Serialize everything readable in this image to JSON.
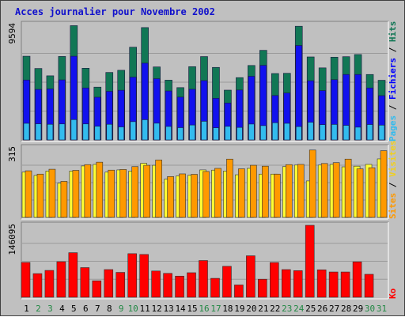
{
  "chart_data": {
    "type": "bar",
    "title": "Acces journalier pour Novembre 2002",
    "categories": [
      "1",
      "2",
      "3",
      "4",
      "5",
      "6",
      "7",
      "8",
      "9",
      "10",
      "11",
      "12",
      "13",
      "14",
      "15",
      "16",
      "17",
      "18",
      "19",
      "20",
      "21",
      "22",
      "23",
      "24",
      "25",
      "26",
      "27",
      "28",
      "29",
      "30",
      "31"
    ],
    "weekend_days": [
      "2",
      "3",
      "9",
      "10",
      "16",
      "17",
      "23",
      "24",
      "30",
      "31"
    ],
    "panels": [
      {
        "name": "pages-fichiers-hits",
        "max_label": "9594",
        "max": 9594,
        "right_label_parts": [
          {
            "text": "Pages",
            "color": "#33bbee"
          },
          {
            "text": " / ",
            "color": "#000000"
          },
          {
            "text": "Fichiers",
            "color": "#0000ff"
          },
          {
            "text": " / ",
            "color": "#000000"
          },
          {
            "text": "Hits",
            "color": "#117755"
          }
        ],
        "series": [
          {
            "name": "Hits",
            "color": "#117755",
            "values": [
              6960,
              5940,
              5330,
              6940,
              9500,
              5960,
              4390,
              5610,
              5790,
              7710,
              9340,
              6070,
              4970,
              4350,
              6090,
              6930,
              6030,
              4140,
              5180,
              6190,
              7450,
              5520,
              5540,
              9450,
              6900,
              5990,
              6880,
              6920,
              7100,
              5440,
              4960
            ]
          },
          {
            "name": "Fichiers",
            "color": "#1111ee",
            "values": [
              4980,
              4200,
              4240,
              4990,
              6960,
              4320,
              3550,
              4040,
              4130,
              5220,
              6380,
              5090,
              4070,
              3560,
              4210,
              4930,
              3460,
              3070,
              4150,
              5290,
              6200,
              3690,
              3900,
              7850,
              4920,
              4100,
              5010,
              5440,
              5440,
              4320,
              3680
            ]
          },
          {
            "name": "Pages",
            "color": "#33bbee",
            "values": [
              1380,
              1340,
              1300,
              1330,
              1690,
              1330,
              1140,
              1300,
              1080,
              1520,
              1680,
              1390,
              1120,
              1020,
              1240,
              1550,
              1010,
              1130,
              1040,
              1320,
              1190,
              1430,
              1380,
              1110,
              1470,
              1270,
              1290,
              1210,
              1060,
              1280,
              1230
            ]
          }
        ]
      },
      {
        "name": "visites-sites",
        "max_label": "315",
        "max": 315,
        "right_label_parts": [
          {
            "text": "Sites",
            "color": "#ff9900"
          },
          {
            "text": " / ",
            "color": "#000000"
          },
          {
            "text": "Visites",
            "color": "#f0d020"
          }
        ],
        "series": [
          {
            "name": "Visites",
            "color": "#ffff33",
            "values": [
              205,
              190,
              210,
              155,
              210,
              233,
              240,
              205,
              215,
              210,
              245,
              236,
              173,
              188,
              191,
              215,
              214,
              210,
              193,
              222,
              196,
              196,
              230,
              237,
              165,
              237,
              240,
              229,
              232,
              240,
              265
            ]
          },
          {
            "name": "Sites",
            "color": "#ff9900",
            "values": [
              211,
              196,
              218,
              163,
              213,
              239,
              250,
              214,
              217,
              230,
              236,
              260,
              185,
              197,
              195,
              208,
              222,
              264,
              220,
              236,
              232,
              196,
              239,
              240,
              305,
              244,
              248,
              264,
              220,
              225,
              302
            ]
          }
        ]
      },
      {
        "name": "ko",
        "max_label": "146095",
        "max": 146095,
        "right_label_parts": [
          {
            "text": "Ko",
            "color": "#ff0000"
          }
        ],
        "series": [
          {
            "name": "Ko",
            "color": "#ff0000",
            "values": [
              70700,
              48000,
              54500,
              72200,
              90500,
              60200,
              33400,
              56200,
              50500,
              88500,
              86900,
              53300,
              48500,
              42900,
              49800,
              74600,
              38400,
              62800,
              25000,
              84200,
              36600,
              70500,
              56200,
              54000,
              146095,
              55700,
              51300,
              51300,
              71900,
              46600,
              0
            ]
          }
        ]
      }
    ],
    "colors": {
      "background": "#c0c0c0",
      "panel_background": "#c0c0c0",
      "title": "#1010cc",
      "weekday_label": "#000000",
      "weekend_label": "#228844"
    }
  }
}
